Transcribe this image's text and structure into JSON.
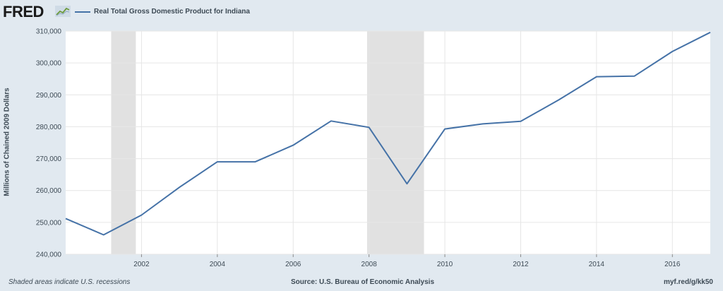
{
  "header": {
    "logo": "FRED",
    "legend_label": "Real Total Gross Domestic Product for Indiana"
  },
  "colors": {
    "line": "#4572a7",
    "recession": "#e1e1e1",
    "plot_bg": "#ffffff",
    "page_bg": "#e1e9f0",
    "grid": "#e6e6e6"
  },
  "footer": {
    "note": "Shaded areas indicate U.S. recessions",
    "source": "Source: U.S. Bureau of Economic Analysis",
    "link": "myf.red/g/kk50"
  },
  "chart_data": {
    "type": "line",
    "title": "",
    "xlabel": "",
    "ylabel": "Millions of Chained 2009 Dollars",
    "xlim": [
      2000,
      2017
    ],
    "ylim": [
      240000,
      310000
    ],
    "grid": true,
    "legend_position": "top-left",
    "x_ticks": [
      2002,
      2004,
      2006,
      2008,
      2010,
      2012,
      2014,
      2016
    ],
    "x_tick_labels": [
      "2002",
      "2004",
      "2006",
      "2008",
      "2010",
      "2012",
      "2014",
      "2016"
    ],
    "y_ticks": [
      240000,
      250000,
      260000,
      270000,
      280000,
      290000,
      300000,
      310000
    ],
    "y_tick_labels": [
      "240,000",
      "250,000",
      "260,000",
      "270,000",
      "280,000",
      "290,000",
      "300,000",
      "310,000"
    ],
    "recessions": [
      [
        2001.2,
        2001.85
      ],
      [
        2007.95,
        2009.45
      ]
    ],
    "series": [
      {
        "name": "Real Total Gross Domestic Product for Indiana",
        "x": [
          2000,
          2001,
          2002,
          2003,
          2004,
          2005,
          2006,
          2007,
          2008,
          2009,
          2010,
          2011,
          2012,
          2013,
          2014,
          2015,
          2016,
          2017
        ],
        "values": [
          251200,
          246100,
          252300,
          261000,
          269000,
          269000,
          274200,
          281800,
          279800,
          262100,
          279300,
          280900,
          281700,
          288400,
          295700,
          295900,
          303600,
          309600
        ]
      }
    ]
  }
}
